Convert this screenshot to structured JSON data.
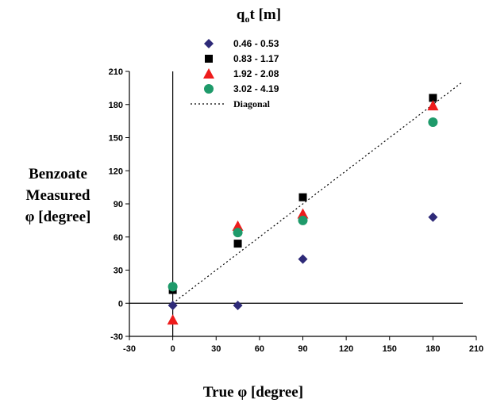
{
  "chart_data": {
    "type": "scatter",
    "title": "",
    "legend_title": {
      "main": "q",
      "sub": "o",
      "rest": "t  [m]"
    },
    "xlabel": "True φ [degree]",
    "ylabel_lines": [
      "Benzoate",
      "Measured",
      "φ  [degree]"
    ],
    "xlim": [
      -30,
      210
    ],
    "ylim": [
      -30,
      210
    ],
    "xticks": [
      "-30",
      "0",
      "30",
      "60",
      "90",
      "120",
      "150",
      "180",
      "210"
    ],
    "yticks": [
      "-30",
      "0",
      "30",
      "60",
      "90",
      "120",
      "150",
      "180",
      "210"
    ],
    "grid": false,
    "legend_position": "top-center",
    "series": [
      {
        "name": "0.46 - 0.53",
        "marker": "diamond",
        "color": "#2e2a78",
        "x": [
          0,
          45,
          90,
          180
        ],
        "y": [
          -2,
          -2,
          40,
          78
        ]
      },
      {
        "name": "0.83 - 1.17",
        "marker": "square",
        "color": "#000000",
        "x": [
          0,
          45,
          90,
          180
        ],
        "y": [
          12,
          54,
          96,
          186
        ]
      },
      {
        "name": "1.92 - 2.08",
        "marker": "triangle",
        "color": "#ee1c1c",
        "x": [
          0,
          45,
          90,
          180
        ],
        "y": [
          -15,
          70,
          81,
          179
        ]
      },
      {
        "name": "3.02 - 4.19",
        "marker": "circle",
        "color": "#1e9a6a",
        "x": [
          0,
          45,
          90,
          180
        ],
        "y": [
          15,
          64,
          75,
          164
        ]
      }
    ],
    "reference_line": {
      "name": "Diagonal",
      "x": [
        0,
        200
      ],
      "y": [
        0,
        200
      ],
      "style": "dotted",
      "color": "#000000"
    }
  }
}
